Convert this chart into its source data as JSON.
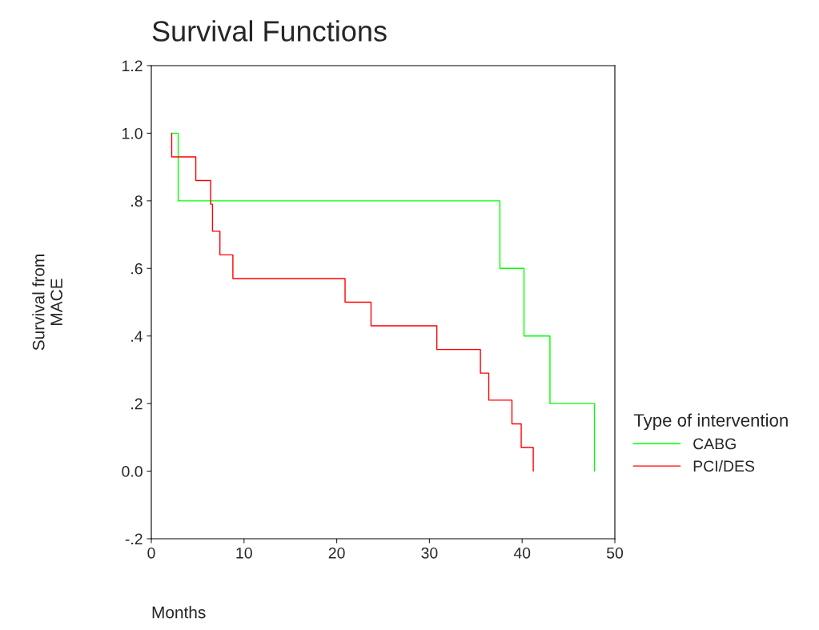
{
  "chart_data": {
    "type": "step",
    "title": "Survival Functions",
    "xlabel": "Months",
    "ylabel": "Survival from\nMACE",
    "legend_title": "Type of intervention",
    "series": [
      {
        "name": "CABG",
        "color": "#00ff00",
        "x": [
          2.2,
          2.9,
          37.6,
          40.2,
          43.0,
          47.8
        ],
        "values": [
          1.0,
          0.8,
          0.6,
          0.4,
          0.2,
          0.0
        ]
      },
      {
        "name": "PCI/DES",
        "color": "#ff0000",
        "x": [
          2.2,
          2.2,
          4.8,
          6.4,
          6.6,
          7.4,
          8.8,
          20.9,
          23.7,
          30.8,
          35.5,
          36.4,
          38.9,
          39.9,
          41.2
        ],
        "values": [
          1.0,
          0.93,
          0.86,
          0.79,
          0.71,
          0.64,
          0.57,
          0.5,
          0.43,
          0.36,
          0.29,
          0.21,
          0.14,
          0.07,
          0.0
        ]
      }
    ],
    "xlim": [
      0,
      50
    ],
    "xticks": [
      0,
      10,
      20,
      30,
      40,
      50
    ],
    "ylim": [
      -0.2,
      1.2
    ],
    "yticks": [
      {
        "value": -0.2,
        "label": "-.2"
      },
      {
        "value": 0.0,
        "label": "0.0"
      },
      {
        "value": 0.2,
        "label": ".2"
      },
      {
        "value": 0.4,
        "label": ".4"
      },
      {
        "value": 0.6,
        "label": ".6"
      },
      {
        "value": 0.8,
        "label": ".8"
      },
      {
        "value": 1.0,
        "label": "1.0"
      },
      {
        "value": 1.2,
        "label": "1.2"
      }
    ],
    "grid": false,
    "legend": "right"
  }
}
